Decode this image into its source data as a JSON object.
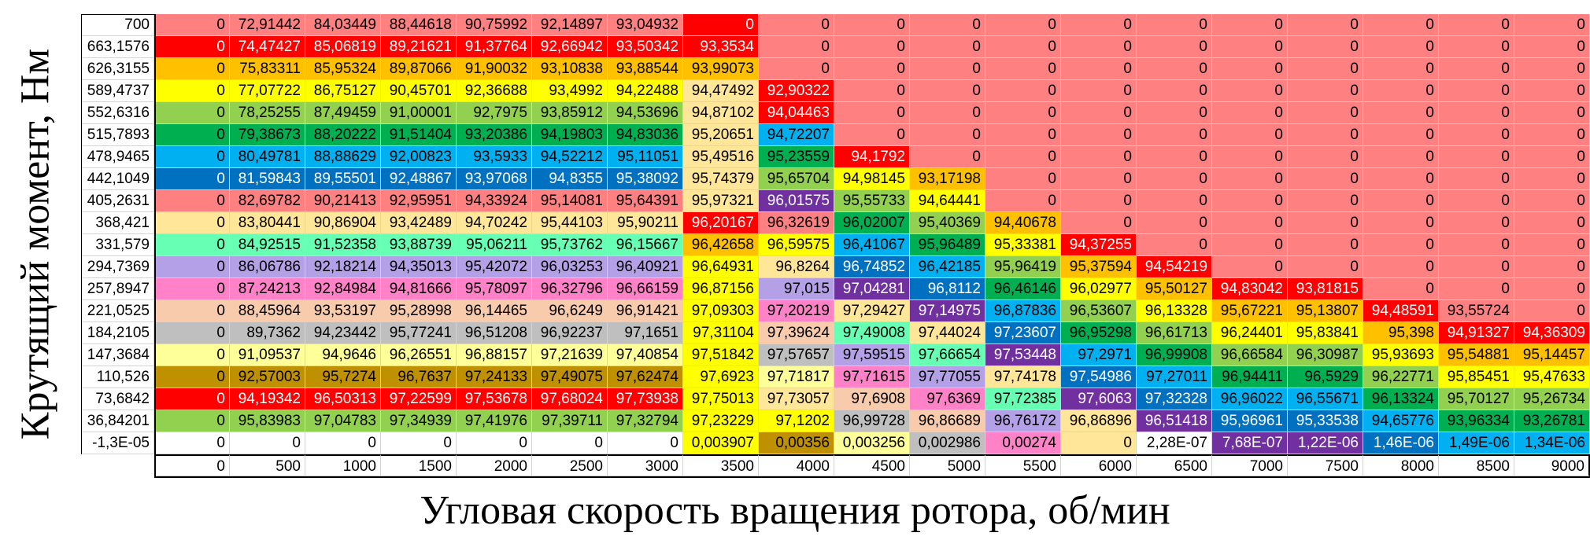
{
  "chart_data": {
    "type": "heatmap",
    "xlabel": "Угловая скорость вращения ротора, об/мин",
    "ylabel": "Крутящий момент, Нм",
    "x": [
      "0",
      "500",
      "1000",
      "1500",
      "2000",
      "2500",
      "3000",
      "3500",
      "4000",
      "4500",
      "5000",
      "5500",
      "6000",
      "6500",
      "7000",
      "7500",
      "8000",
      "8500",
      "9000"
    ],
    "y": [
      "700",
      "663,1576",
      "626,3155",
      "589,4737",
      "552,6316",
      "515,7893",
      "478,9465",
      "442,1049",
      "405,2631",
      "368,421",
      "331,579",
      "294,7369",
      "257,8947",
      "221,0525",
      "184,2105",
      "147,3684",
      "110,526",
      "73,6842",
      "36,84201",
      "-1,3E-05"
    ],
    "values": [
      [
        "0",
        "72,91442",
        "84,03449",
        "88,44618",
        "90,75992",
        "92,14897",
        "93,04932",
        "0",
        "0",
        "0",
        "0",
        "0",
        "0",
        "0",
        "0",
        "0",
        "0",
        "0",
        "0"
      ],
      [
        "0",
        "74,47427",
        "85,06819",
        "89,21621",
        "91,37764",
        "92,66942",
        "93,50342",
        "93,3534",
        "0",
        "0",
        "0",
        "0",
        "0",
        "0",
        "0",
        "0",
        "0",
        "0",
        "0"
      ],
      [
        "0",
        "75,83311",
        "85,95324",
        "89,87066",
        "91,90032",
        "93,10838",
        "93,88544",
        "93,99073",
        "0",
        "0",
        "0",
        "0",
        "0",
        "0",
        "0",
        "0",
        "0",
        "0",
        "0"
      ],
      [
        "0",
        "77,07722",
        "86,75127",
        "90,45701",
        "92,36688",
        "93,4992",
        "94,22488",
        "94,47492",
        "92,90322",
        "0",
        "0",
        "0",
        "0",
        "0",
        "0",
        "0",
        "0",
        "0",
        "0"
      ],
      [
        "0",
        "78,25255",
        "87,49459",
        "91,00001",
        "92,7975",
        "93,85912",
        "94,53696",
        "94,87102",
        "94,04463",
        "0",
        "0",
        "0",
        "0",
        "0",
        "0",
        "0",
        "0",
        "0",
        "0"
      ],
      [
        "0",
        "79,38673",
        "88,20222",
        "91,51404",
        "93,20386",
        "94,19803",
        "94,83036",
        "95,20651",
        "94,72207",
        "0",
        "0",
        "0",
        "0",
        "0",
        "0",
        "0",
        "0",
        "0",
        "0"
      ],
      [
        "0",
        "80,49781",
        "88,88629",
        "92,00823",
        "93,5933",
        "94,52212",
        "95,11051",
        "95,49516",
        "95,23559",
        "94,1792",
        "0",
        "0",
        "0",
        "0",
        "0",
        "0",
        "0",
        "0",
        "0"
      ],
      [
        "0",
        "81,59843",
        "89,55501",
        "92,48867",
        "93,97068",
        "94,8355",
        "95,38092",
        "95,74379",
        "95,65704",
        "94,98145",
        "93,17198",
        "0",
        "0",
        "0",
        "0",
        "0",
        "0",
        "0",
        "0"
      ],
      [
        "0",
        "82,69782",
        "90,21413",
        "92,95951",
        "94,33924",
        "95,14081",
        "95,64391",
        "95,97321",
        "96,01575",
        "95,55733",
        "94,64441",
        "0",
        "0",
        "0",
        "0",
        "0",
        "0",
        "0",
        "0"
      ],
      [
        "0",
        "83,80441",
        "90,86904",
        "93,42489",
        "94,70242",
        "95,44103",
        "95,90211",
        "96,20167",
        "96,32619",
        "96,02007",
        "95,40369",
        "94,40678",
        "0",
        "0",
        "0",
        "0",
        "0",
        "0",
        "0"
      ],
      [
        "0",
        "84,92515",
        "91,52358",
        "93,88739",
        "95,06211",
        "95,73762",
        "96,15667",
        "96,42658",
        "96,59575",
        "96,41067",
        "95,96489",
        "95,33381",
        "94,37255",
        "0",
        "0",
        "0",
        "0",
        "0",
        "0"
      ],
      [
        "0",
        "86,06786",
        "92,18214",
        "94,35013",
        "95,42072",
        "96,03253",
        "96,40921",
        "96,64931",
        "96,8264",
        "96,74852",
        "96,42185",
        "95,96419",
        "95,37594",
        "94,54219",
        "0",
        "0",
        "0",
        "0",
        "0"
      ],
      [
        "0",
        "87,24213",
        "92,84984",
        "94,81666",
        "95,78097",
        "96,32796",
        "96,66159",
        "96,87156",
        "97,015",
        "97,04281",
        "96,8112",
        "96,46146",
        "96,02977",
        "95,50127",
        "94,83042",
        "93,81815",
        "0",
        "0",
        "0"
      ],
      [
        "0",
        "88,45964",
        "93,53197",
        "95,28998",
        "96,14465",
        "96,6249",
        "96,91421",
        "97,09303",
        "97,20219",
        "97,29427",
        "97,14975",
        "96,87836",
        "96,53607",
        "96,13328",
        "95,67221",
        "95,13807",
        "94,48591",
        "93,55724",
        "0"
      ],
      [
        "0",
        "89,7362",
        "94,23442",
        "95,77241",
        "96,51208",
        "96,92237",
        "97,1651",
        "97,31104",
        "97,39624",
        "97,49008",
        "97,44024",
        "97,23607",
        "96,95298",
        "96,61713",
        "96,24401",
        "95,83841",
        "95,398",
        "94,91327",
        "94,36309"
      ],
      [
        "0",
        "91,09537",
        "94,9646",
        "96,26551",
        "96,88157",
        "97,21639",
        "97,40854",
        "97,51842",
        "97,57657",
        "97,59515",
        "97,66654",
        "97,53448",
        "97,2971",
        "96,99908",
        "96,66584",
        "96,30987",
        "95,93693",
        "95,54881",
        "95,14457"
      ],
      [
        "0",
        "92,57003",
        "95,7274",
        "96,7637",
        "97,24133",
        "97,49075",
        "97,62474",
        "97,6923",
        "97,71817",
        "97,71615",
        "97,77055",
        "97,74178",
        "97,54986",
        "97,27011",
        "96,94411",
        "96,5929",
        "96,22771",
        "95,85451",
        "95,47633"
      ],
      [
        "0",
        "94,19342",
        "96,50313",
        "97,22599",
        "97,53678",
        "97,68024",
        "97,73938",
        "97,75013",
        "97,73057",
        "97,6908",
        "97,6369",
        "97,72385",
        "97,6063",
        "97,32328",
        "96,96022",
        "96,55671",
        "96,13324",
        "95,70127",
        "95,26734"
      ],
      [
        "0",
        "95,83983",
        "97,04783",
        "97,34939",
        "97,41976",
        "97,39711",
        "97,32794",
        "97,23229",
        "97,1202",
        "96,99728",
        "96,86689",
        "96,76172",
        "96,86896",
        "96,51418",
        "95,96961",
        "95,33538",
        "94,65776",
        "93,96334",
        "93,26781"
      ],
      [
        "0",
        "0",
        "0",
        "0",
        "0",
        "0",
        "0",
        "0,003907",
        "0,00356",
        "0,003256",
        "0,002986",
        "0,00274",
        "0",
        "2,28E-07",
        "7,68E-07",
        "1,22E-06",
        "1,46E-06",
        "1,49E-06",
        "1,34E-06"
      ]
    ],
    "palette": [
      "#ff8080",
      "#ff0000",
      "#ffc000",
      "#ffff00",
      "#92d050",
      "#00b050",
      "#00b0f0",
      "#0070c0",
      "#7030a0",
      "#ffe699",
      "#66ffb3",
      "#b4a0e6",
      "#ff82c8",
      "#f8cbad",
      "#bfbfbf",
      "#ffff99",
      "#bf9000",
      "#ff0000",
      "#92d050",
      "#ffffff",
      "#a9d08e",
      "#bf9000",
      "#ffe699",
      "#66ffb3",
      "#ff82c8"
    ],
    "bands": [
      [
        7,
        0,
        1,
        1
      ],
      [
        7,
        2,
        2,
        2
      ],
      [
        7,
        3,
        8,
        9
      ],
      [
        7,
        9,
        9,
        1
      ],
      [
        7,
        10,
        10,
        2
      ],
      [
        7,
        11,
        19,
        3
      ],
      [
        8,
        0,
        2,
        0
      ],
      [
        8,
        3,
        3,
        1
      ],
      [
        8,
        4,
        4,
        17
      ],
      [
        8,
        5,
        5,
        6
      ],
      [
        8,
        6,
        6,
        5
      ],
      [
        8,
        7,
        7,
        4
      ],
      [
        8,
        8,
        8,
        8
      ],
      [
        8,
        9,
        9,
        0
      ],
      [
        8,
        10,
        10,
        3
      ],
      [
        8,
        11,
        11,
        9
      ],
      [
        8,
        12,
        12,
        11
      ],
      [
        8,
        13,
        13,
        12
      ],
      [
        8,
        14,
        14,
        13
      ],
      [
        8,
        15,
        15,
        14
      ],
      [
        8,
        16,
        16,
        15
      ],
      [
        8,
        17,
        17,
        22
      ],
      [
        8,
        18,
        18,
        3
      ],
      [
        8,
        19,
        19,
        16
      ],
      [
        9,
        0,
        5,
        0
      ],
      [
        9,
        6,
        6,
        1
      ],
      [
        9,
        7,
        7,
        3
      ],
      [
        9,
        8,
        8,
        4
      ],
      [
        9,
        9,
        9,
        5
      ],
      [
        9,
        10,
        10,
        6
      ],
      [
        9,
        11,
        11,
        7
      ],
      [
        9,
        12,
        12,
        8
      ],
      [
        9,
        13,
        13,
        9
      ],
      [
        9,
        14,
        14,
        10
      ],
      [
        9,
        15,
        15,
        11
      ],
      [
        9,
        16,
        16,
        12
      ],
      [
        9,
        17,
        17,
        13
      ],
      [
        9,
        18,
        18,
        14
      ],
      [
        9,
        19,
        19,
        15
      ],
      [
        10,
        0,
        6,
        0
      ],
      [
        10,
        7,
        7,
        2
      ],
      [
        10,
        8,
        8,
        3
      ],
      [
        10,
        9,
        9,
        4
      ],
      [
        10,
        10,
        10,
        5
      ],
      [
        10,
        11,
        11,
        6
      ],
      [
        10,
        12,
        12,
        7
      ],
      [
        10,
        13,
        13,
        8
      ],
      [
        10,
        14,
        14,
        9
      ],
      [
        10,
        15,
        15,
        10
      ],
      [
        10,
        16,
        16,
        11
      ],
      [
        10,
        17,
        17,
        12
      ],
      [
        10,
        18,
        18,
        13
      ],
      [
        10,
        19,
        19,
        14
      ],
      [
        11,
        0,
        8,
        0
      ],
      [
        11,
        9,
        9,
        2
      ],
      [
        11,
        10,
        10,
        3
      ],
      [
        11,
        11,
        11,
        4
      ],
      [
        11,
        12,
        12,
        5
      ],
      [
        11,
        13,
        13,
        6
      ],
      [
        11,
        14,
        14,
        7
      ],
      [
        11,
        15,
        15,
        8
      ],
      [
        11,
        16,
        16,
        9
      ],
      [
        11,
        17,
        17,
        10
      ],
      [
        11,
        18,
        18,
        11
      ],
      [
        11,
        19,
        19,
        12
      ],
      [
        12,
        0,
        9,
        0
      ],
      [
        12,
        10,
        10,
        1
      ],
      [
        12,
        11,
        11,
        2
      ],
      [
        12,
        12,
        12,
        3
      ],
      [
        12,
        13,
        13,
        4
      ],
      [
        12,
        14,
        14,
        5
      ],
      [
        12,
        15,
        15,
        6
      ],
      [
        12,
        16,
        16,
        7
      ],
      [
        12,
        17,
        17,
        8
      ],
      [
        12,
        18,
        18,
        9
      ],
      [
        12,
        19,
        19,
        22
      ],
      [
        13,
        0,
        10,
        0
      ],
      [
        13,
        11,
        11,
        1
      ],
      [
        13,
        12,
        12,
        2
      ],
      [
        13,
        13,
        13,
        3
      ],
      [
        13,
        14,
        14,
        4
      ],
      [
        13,
        15,
        15,
        5
      ],
      [
        13,
        16,
        16,
        6
      ],
      [
        13,
        17,
        17,
        7
      ],
      [
        13,
        18,
        18,
        8
      ],
      [
        13,
        19,
        19,
        19
      ],
      [
        14,
        0,
        11,
        0
      ],
      [
        14,
        12,
        12,
        1
      ],
      [
        14,
        13,
        13,
        2
      ],
      [
        14,
        14,
        14,
        3
      ],
      [
        14,
        15,
        15,
        4
      ],
      [
        14,
        16,
        16,
        5
      ],
      [
        14,
        17,
        17,
        6
      ],
      [
        14,
        18,
        18,
        7
      ],
      [
        14,
        19,
        19,
        8
      ],
      [
        15,
        0,
        11,
        0
      ],
      [
        15,
        12,
        12,
        1
      ],
      [
        15,
        13,
        13,
        2
      ],
      [
        15,
        14,
        14,
        3
      ],
      [
        15,
        15,
        15,
        4
      ],
      [
        15,
        16,
        16,
        5
      ],
      [
        15,
        17,
        17,
        6
      ],
      [
        15,
        18,
        18,
        7
      ],
      [
        15,
        19,
        19,
        8
      ],
      [
        16,
        0,
        12,
        0
      ],
      [
        16,
        13,
        13,
        1
      ],
      [
        16,
        14,
        14,
        2
      ],
      [
        16,
        15,
        15,
        3
      ],
      [
        16,
        16,
        16,
        4
      ],
      [
        16,
        17,
        17,
        5
      ],
      [
        16,
        18,
        18,
        6
      ],
      [
        16,
        19,
        19,
        7
      ],
      [
        17,
        0,
        12,
        0
      ],
      [
        17,
        13,
        13,
        0
      ],
      [
        17,
        14,
        14,
        1
      ],
      [
        17,
        15,
        15,
        2
      ],
      [
        17,
        16,
        16,
        3
      ],
      [
        17,
        17,
        17,
        4
      ],
      [
        17,
        18,
        18,
        5
      ],
      [
        17,
        19,
        19,
        6
      ],
      [
        18,
        0,
        13,
        0
      ],
      [
        18,
        14,
        14,
        1
      ],
      [
        18,
        15,
        15,
        2
      ],
      [
        18,
        16,
        16,
        3
      ],
      [
        18,
        17,
        17,
        4
      ],
      [
        18,
        18,
        18,
        5
      ],
      [
        18,
        19,
        19,
        6
      ]
    ],
    "row_colors": [
      "#ff8080",
      "#ff0000",
      "#ffc000",
      "#ffff00",
      "#92d050",
      "#00b050",
      "#00b0f0",
      "#0070c0",
      "#ff8080",
      "#ffe699",
      "#66ffb3",
      "#b4a0e6",
      "#ff82c8",
      "#f8cbad",
      "#bfbfbf",
      "#ffff99",
      "#bf9000",
      "#ff0000",
      "#92d050",
      "#ffffff"
    ]
  }
}
